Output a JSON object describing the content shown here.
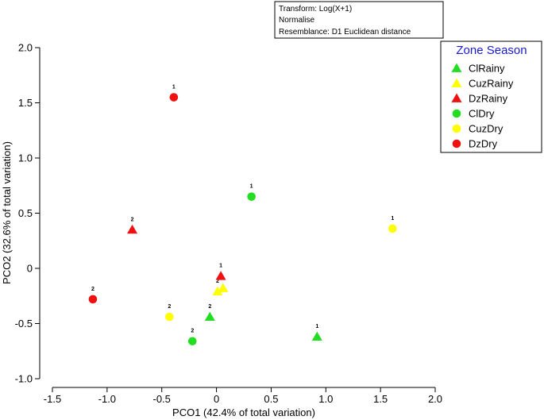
{
  "chart_data": {
    "type": "scatter",
    "title": "",
    "xlabel": "PCO1 (42.4% of total variation)",
    "ylabel": "PCO2 (32.6% of total variation)",
    "xlim": [
      -1.5,
      2.0
    ],
    "ylim": [
      -1.0,
      2.0
    ],
    "x_ticks": [
      -1.5,
      -1.0,
      -0.5,
      0,
      0.5,
      1.0,
      1.5,
      2.0
    ],
    "x_tick_labels": [
      "-1.5",
      "-1.0",
      "-0.5",
      "0",
      "0.5",
      "1.0",
      "1.5",
      "2.0"
    ],
    "y_ticks": [
      -1.0,
      -0.5,
      0,
      0.5,
      1.0,
      1.5,
      2.0
    ],
    "y_tick_labels": [
      "-1.0",
      "-0.5",
      "0",
      "0.5",
      "1.0",
      "1.5",
      "2.0"
    ],
    "grid": false,
    "notes": [
      "Transform: Log(X+1)",
      "Normalise",
      "Resemblance: D1 Euclidean distance"
    ],
    "legend_title": "Zone Season",
    "legend_position": "top-right",
    "series": [
      {
        "name": "ClRainy",
        "marker": "triangle",
        "color": "#22dd22",
        "points": [
          {
            "x": 0.92,
            "y": -0.62,
            "label": "1"
          },
          {
            "x": -0.06,
            "y": -0.44,
            "label": "2"
          }
        ]
      },
      {
        "name": "CuzRainy",
        "marker": "triangle",
        "color": "#ffff00",
        "points": [
          {
            "x": 0.06,
            "y": -0.18,
            "label": "1"
          },
          {
            "x": 0.01,
            "y": -0.21,
            "label": "2"
          }
        ]
      },
      {
        "name": "DzRainy",
        "marker": "triangle",
        "color": "#ee1111",
        "points": [
          {
            "x": 0.04,
            "y": -0.07,
            "label": "1"
          },
          {
            "x": -0.77,
            "y": 0.35,
            "label": "2"
          }
        ]
      },
      {
        "name": "ClDry",
        "marker": "circle",
        "color": "#22dd22",
        "points": [
          {
            "x": 0.32,
            "y": 0.65,
            "label": "1"
          },
          {
            "x": -0.22,
            "y": -0.66,
            "label": "2"
          }
        ]
      },
      {
        "name": "CuzDry",
        "marker": "circle",
        "color": "#ffff00",
        "points": [
          {
            "x": 1.61,
            "y": 0.36,
            "label": "1"
          },
          {
            "x": -0.43,
            "y": -0.44,
            "label": "2"
          }
        ]
      },
      {
        "name": "DzDry",
        "marker": "circle",
        "color": "#ee1111",
        "points": [
          {
            "x": -0.39,
            "y": 1.55,
            "label": "1"
          },
          {
            "x": -1.13,
            "y": -0.28,
            "label": "2"
          }
        ]
      }
    ]
  }
}
